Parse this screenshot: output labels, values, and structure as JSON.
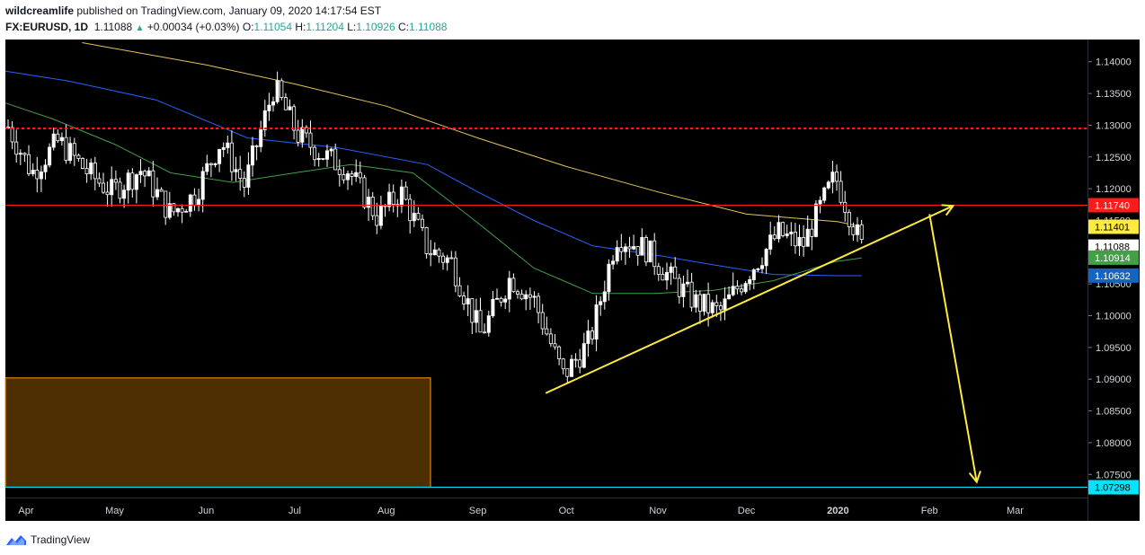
{
  "header": {
    "author": "wildcreamlife",
    "published_text": "published on TradingView.com, January 09, 2020 14:17:54 EST",
    "symbol": "FX:EURUSD, 1D",
    "last": "1.11088",
    "change": "+0.00034 (+0.03%)",
    "o_label": "O:",
    "o_value": "1.11054",
    "h_label": "H:",
    "h_value": "1.11204",
    "l_label": "L:",
    "l_value": "1.10926",
    "c_label": "C:",
    "c_value": "1.11088"
  },
  "footer": {
    "brand": "TradingView"
  },
  "colors": {
    "background": "#000000",
    "candle": "#ffffff",
    "ma200": "#e3c45b",
    "ma100": "#2962ff",
    "ma50": "#43a047",
    "resistance": "#ff1a1a",
    "dotted": "#ff1a1a",
    "trendline": "#ffeb3b",
    "target": "#00e5ff",
    "zone_fill": "#4d2e00",
    "zone_border": "#ff9800"
  },
  "chart_data": {
    "type": "candlestick",
    "symbol": "FX:EURUSD",
    "timeframe": "1D",
    "ylim": [
      1.0715,
      1.1435
    ],
    "x_ticks": [
      "Apr",
      "May",
      "Jun",
      "Jul",
      "Aug",
      "Sep",
      "Oct",
      "Nov",
      "Dec",
      "2020",
      "Feb",
      "Mar"
    ],
    "y_ticks": [
      "1.14000",
      "1.13500",
      "1.13000",
      "1.12500",
      "1.12000",
      "1.11500",
      "1.11000",
      "1.10500",
      "1.10000",
      "1.09500",
      "1.09000",
      "1.08500",
      "1.08000",
      "1.07500"
    ],
    "price_tags": [
      {
        "label": "1.11740",
        "price": 1.1174,
        "bg": "#ff1a1a",
        "fg": "#ffffff"
      },
      {
        "label": "1.11401",
        "price": 1.11401,
        "bg": "#ffeb3b",
        "fg": "#000000"
      },
      {
        "label": "1.11088",
        "price": 1.11088,
        "bg": "#ffffff",
        "fg": "#000000"
      },
      {
        "label": "1.10914",
        "price": 1.10914,
        "bg": "#43a047",
        "fg": "#ffffff"
      },
      {
        "label": "1.10632",
        "price": 1.10632,
        "bg": "#1565c0",
        "fg": "#ffffff"
      },
      {
        "label": "1.07298",
        "price": 1.07298,
        "bg": "#00e5ff",
        "fg": "#000000"
      }
    ],
    "levels": {
      "resistance": 1.1174,
      "dotted_resistance": 1.1295,
      "target": 1.07298
    },
    "trendline": {
      "from": [
        "2019-09-24",
        1.0878
      ],
      "to": [
        "2020-02-09",
        1.1173
      ]
    },
    "projection": [
      [
        "2020-02-01",
        1.116
      ],
      [
        "2020-02-17",
        1.0738
      ]
    ],
    "zone": {
      "from": "2019-03-25",
      "to": "2019-08-16",
      "top": 1.0902,
      "bottom": 1.073
    },
    "series": [
      {
        "name": "200-day moving average",
        "dates": [
          "2019-04-20",
          "2019-06-01",
          "2019-07-01",
          "2019-08-01",
          "2019-09-01",
          "2019-10-01",
          "2019-11-01",
          "2019-12-01",
          "2020-01-01",
          "2020-01-09"
        ],
        "values": [
          1.143,
          1.1395,
          1.1365,
          1.133,
          1.128,
          1.1235,
          1.1195,
          1.116,
          1.1148,
          1.114
        ]
      },
      {
        "name": "100-day moving average",
        "dates": [
          "2019-03-25",
          "2019-04-15",
          "2019-05-15",
          "2019-06-15",
          "2019-07-15",
          "2019-08-15",
          "2019-09-01",
          "2019-09-20",
          "2019-10-10",
          "2019-11-01",
          "2019-11-20",
          "2019-12-10",
          "2019-12-31",
          "2020-01-09"
        ],
        "values": [
          1.1385,
          1.137,
          1.134,
          1.128,
          1.1265,
          1.1238,
          1.1195,
          1.115,
          1.111,
          1.1095,
          1.108,
          1.1065,
          1.1063,
          1.1063
        ]
      },
      {
        "name": "50-day moving average",
        "dates": [
          "2019-03-25",
          "2019-04-10",
          "2019-05-01",
          "2019-05-20",
          "2019-06-10",
          "2019-07-01",
          "2019-07-20",
          "2019-08-10",
          "2019-08-31",
          "2019-09-20",
          "2019-10-10",
          "2019-10-31",
          "2019-11-20",
          "2019-12-10",
          "2019-12-31",
          "2020-01-09"
        ],
        "values": [
          1.1335,
          1.131,
          1.127,
          1.1225,
          1.121,
          1.1225,
          1.1238,
          1.1225,
          1.115,
          1.1075,
          1.1035,
          1.1035,
          1.104,
          1.1055,
          1.1085,
          1.1091
        ]
      },
      {
        "name": "EURUSD daily",
        "dates": [
          "2019-03-25",
          "2019-04-03",
          "2019-04-12",
          "2019-04-22",
          "2019-04-30",
          "2019-05-10",
          "2019-05-20",
          "2019-05-28",
          "2019-06-06",
          "2019-06-14",
          "2019-06-24",
          "2019-07-02",
          "2019-07-10",
          "2019-07-19",
          "2019-07-29",
          "2019-08-06",
          "2019-08-15",
          "2019-08-23",
          "2019-09-02",
          "2019-09-12",
          "2019-09-20",
          "2019-09-30",
          "2019-10-09",
          "2019-10-18",
          "2019-10-28",
          "2019-11-05",
          "2019-11-14",
          "2019-11-22",
          "2019-12-02",
          "2019-12-12",
          "2019-12-20",
          "2019-12-31",
          "2020-01-09"
        ],
        "values": [
          1.1305,
          1.1225,
          1.1275,
          1.1225,
          1.1195,
          1.123,
          1.116,
          1.119,
          1.1275,
          1.1205,
          1.136,
          1.1285,
          1.1255,
          1.123,
          1.1155,
          1.1195,
          1.1105,
          1.1085,
          1.097,
          1.106,
          1.1025,
          1.0905,
          1.096,
          1.1125,
          1.1105,
          1.106,
          1.102,
          1.1005,
          1.107,
          1.113,
          1.111,
          1.122,
          1.1109
        ]
      }
    ]
  }
}
